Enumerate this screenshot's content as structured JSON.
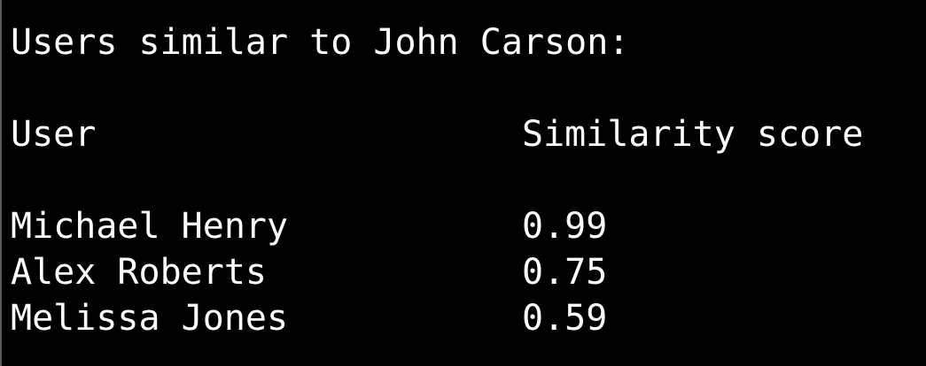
{
  "terminal": {
    "heading": "Users similar to John Carson:",
    "columns": {
      "user": "User",
      "score": "Similarity score"
    },
    "rows": [
      {
        "user": "Michael Henry",
        "score": "0.99"
      },
      {
        "user": "Alex Roberts",
        "score": "0.75"
      },
      {
        "user": "Melissa Jones",
        "score": "0.59"
      }
    ]
  },
  "colors": {
    "background": "#000000",
    "text": "#ffffff"
  }
}
